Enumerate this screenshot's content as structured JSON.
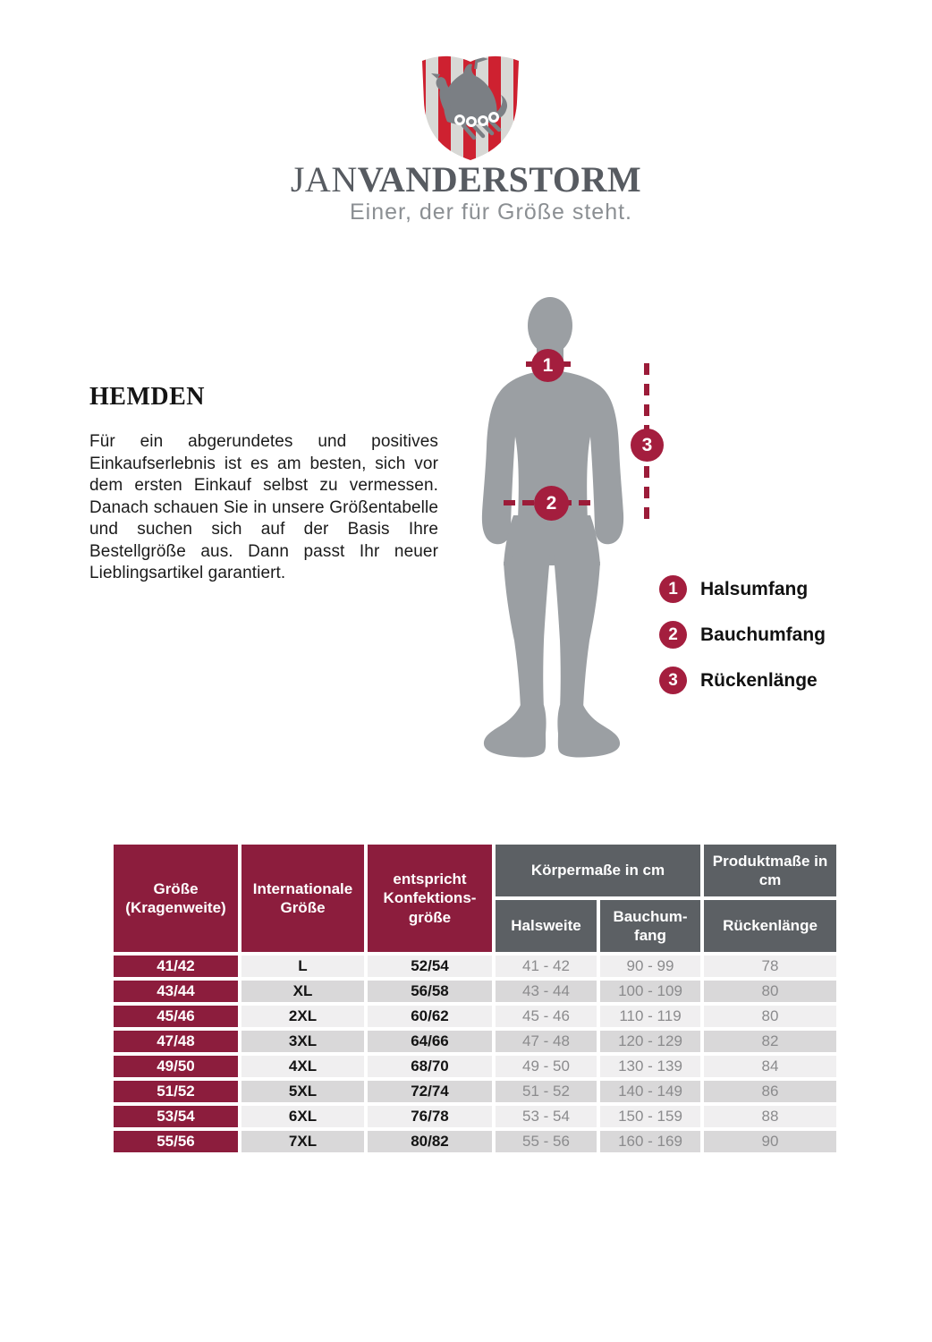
{
  "colors": {
    "maroon": "#8c1d3d",
    "crimson_marker": "#a41e3e",
    "dash_red": "#9c1c39",
    "header_gray": "#5c6064",
    "silhouette_gray": "#9b9fa3",
    "logo_red": "#ce2130",
    "logo_stripe_light": "#d8d8d5",
    "ship_gray": "#7b7f84",
    "row_light": "#f0eff0",
    "row_dark": "#d9d8d9",
    "muted_text": "#8b8b8d"
  },
  "brand": {
    "logo": "viking-ship-shield",
    "name_regular": "JAN",
    "name_bold": "VANDERSTORM",
    "tagline": "Einer, der für Größe steht."
  },
  "intro": {
    "title": "HEMDEN",
    "body": "Für ein abgerundetes und positives Einkaufserlebnis ist es am besten, sich vor dem ersten Einkauf selbst zu vermessen. Danach schauen Sie in unsere Größentabelle und suchen sich auf der Basis Ihre Bestellgröße aus. Dann passt Ihr neuer Lieblingsartikel garantiert."
  },
  "figure": {
    "markers": [
      {
        "num": "1"
      },
      {
        "num": "2"
      },
      {
        "num": "3"
      }
    ]
  },
  "legend": [
    {
      "num": "1",
      "label": "Halsumfang"
    },
    {
      "num": "2",
      "label": "Bauchumfang"
    },
    {
      "num": "3",
      "label": "Rückenlänge"
    }
  ],
  "table": {
    "header": {
      "groesse": "Größe (Kragenweite)",
      "international": "Internationale Größe",
      "konfektion": "entspricht Konfektions- größe",
      "koerpermasse": "Körpermaße in cm",
      "produktmasse": "Produktmaße in cm",
      "halsweite": "Halsweite",
      "bauchumfang": "Bauchum- fang",
      "rueckenlaenge": "Rückenlänge"
    },
    "rows": [
      [
        "41/42",
        "L",
        "52/54",
        "41 - 42",
        "90 - 99",
        "78"
      ],
      [
        "43/44",
        "XL",
        "56/58",
        "43 - 44",
        "100 - 109",
        "80"
      ],
      [
        "45/46",
        "2XL",
        "60/62",
        "45 - 46",
        "110 - 119",
        "80"
      ],
      [
        "47/48",
        "3XL",
        "64/66",
        "47 - 48",
        "120 - 129",
        "82"
      ],
      [
        "49/50",
        "4XL",
        "68/70",
        "49 - 50",
        "130 - 139",
        "84"
      ],
      [
        "51/52",
        "5XL",
        "72/74",
        "51 - 52",
        "140 - 149",
        "86"
      ],
      [
        "53/54",
        "6XL",
        "76/78",
        "53 - 54",
        "150 - 159",
        "88"
      ],
      [
        "55/56",
        "7XL",
        "80/82",
        "55 - 56",
        "160 - 169",
        "90"
      ]
    ]
  }
}
